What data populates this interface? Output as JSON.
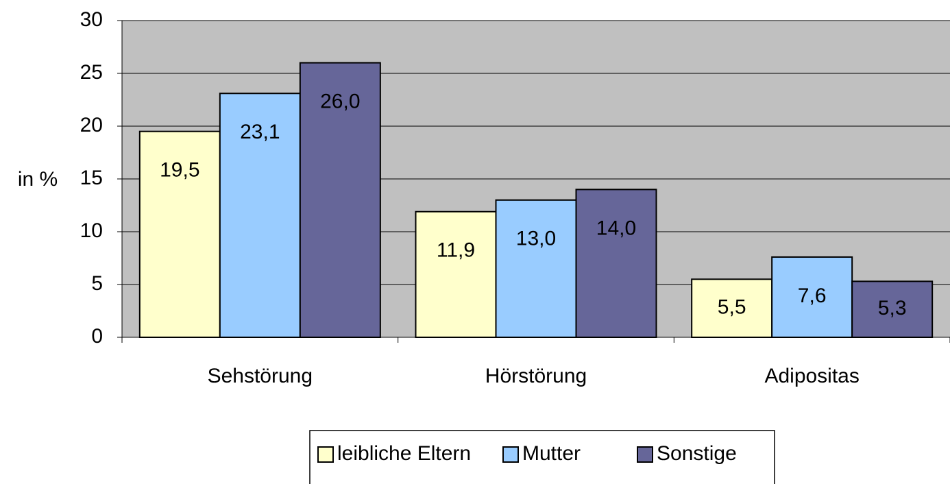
{
  "chart_data": {
    "type": "bar",
    "categories": [
      "Sehstörung",
      "Hörstörung",
      "Adipositas"
    ],
    "series": [
      {
        "name": "leibliche Eltern",
        "color": "#ffffcc",
        "values": [
          19.5,
          11.9,
          5.5
        ],
        "value_labels": [
          "19,5",
          "11,9",
          "5,5"
        ]
      },
      {
        "name": "Mutter",
        "color": "#99ccff",
        "values": [
          23.1,
          13.0,
          7.6
        ],
        "value_labels": [
          "23,1",
          "13,0",
          "7,6"
        ]
      },
      {
        "name": "Sonstige",
        "color": "#666699",
        "values": [
          26.0,
          14.0,
          5.3
        ],
        "value_labels": [
          "26,0",
          "14,0",
          "5,3"
        ]
      }
    ],
    "ylabel": "in %",
    "ylim": [
      0,
      30
    ],
    "yticks": [
      0,
      5,
      10,
      15,
      20,
      25,
      30
    ],
    "grid": true,
    "legend": "bottom"
  }
}
